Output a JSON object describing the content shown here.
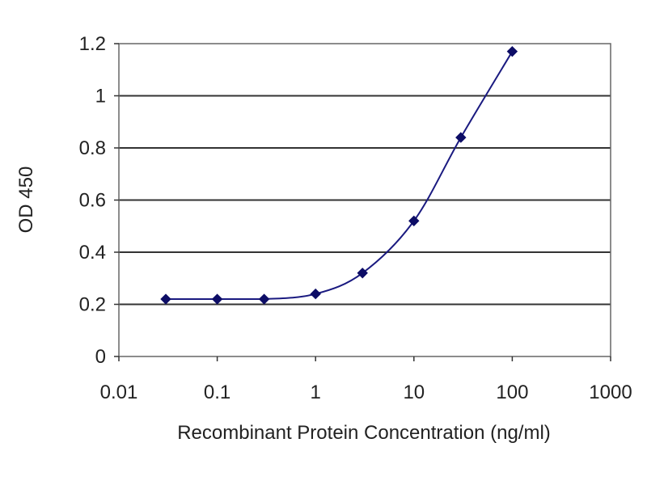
{
  "chart_data": {
    "type": "scatter",
    "title": "",
    "xlabel": "Recombinant Protein Concentration (ng/ml)",
    "ylabel": "OD 450",
    "xscale": "log",
    "xlim": [
      0.01,
      1000
    ],
    "ylim": [
      0,
      1.2
    ],
    "xticks": [
      0.01,
      0.1,
      1,
      10,
      100,
      1000
    ],
    "xtick_labels": [
      "0.01",
      "0.1",
      "1",
      "10",
      "100",
      "1000"
    ],
    "yticks": [
      0,
      0.2,
      0.4,
      0.6,
      0.8,
      1,
      1.2
    ],
    "ytick_labels": [
      "0",
      "0.2",
      "0.4",
      "0.6",
      "0.8",
      "1",
      "1.2"
    ],
    "grid": "horizontal",
    "fitted_curve": true,
    "series": [
      {
        "x": [
          0.03,
          0.1,
          0.3,
          1,
          3,
          10,
          30,
          100
        ],
        "y": [
          0.22,
          0.22,
          0.22,
          0.24,
          0.32,
          0.52,
          0.84,
          1.17
        ]
      }
    ],
    "colors": {
      "series": "#1a1a80",
      "marker": "#0d0d66",
      "grid": "#333333",
      "frame": "#666666"
    }
  }
}
